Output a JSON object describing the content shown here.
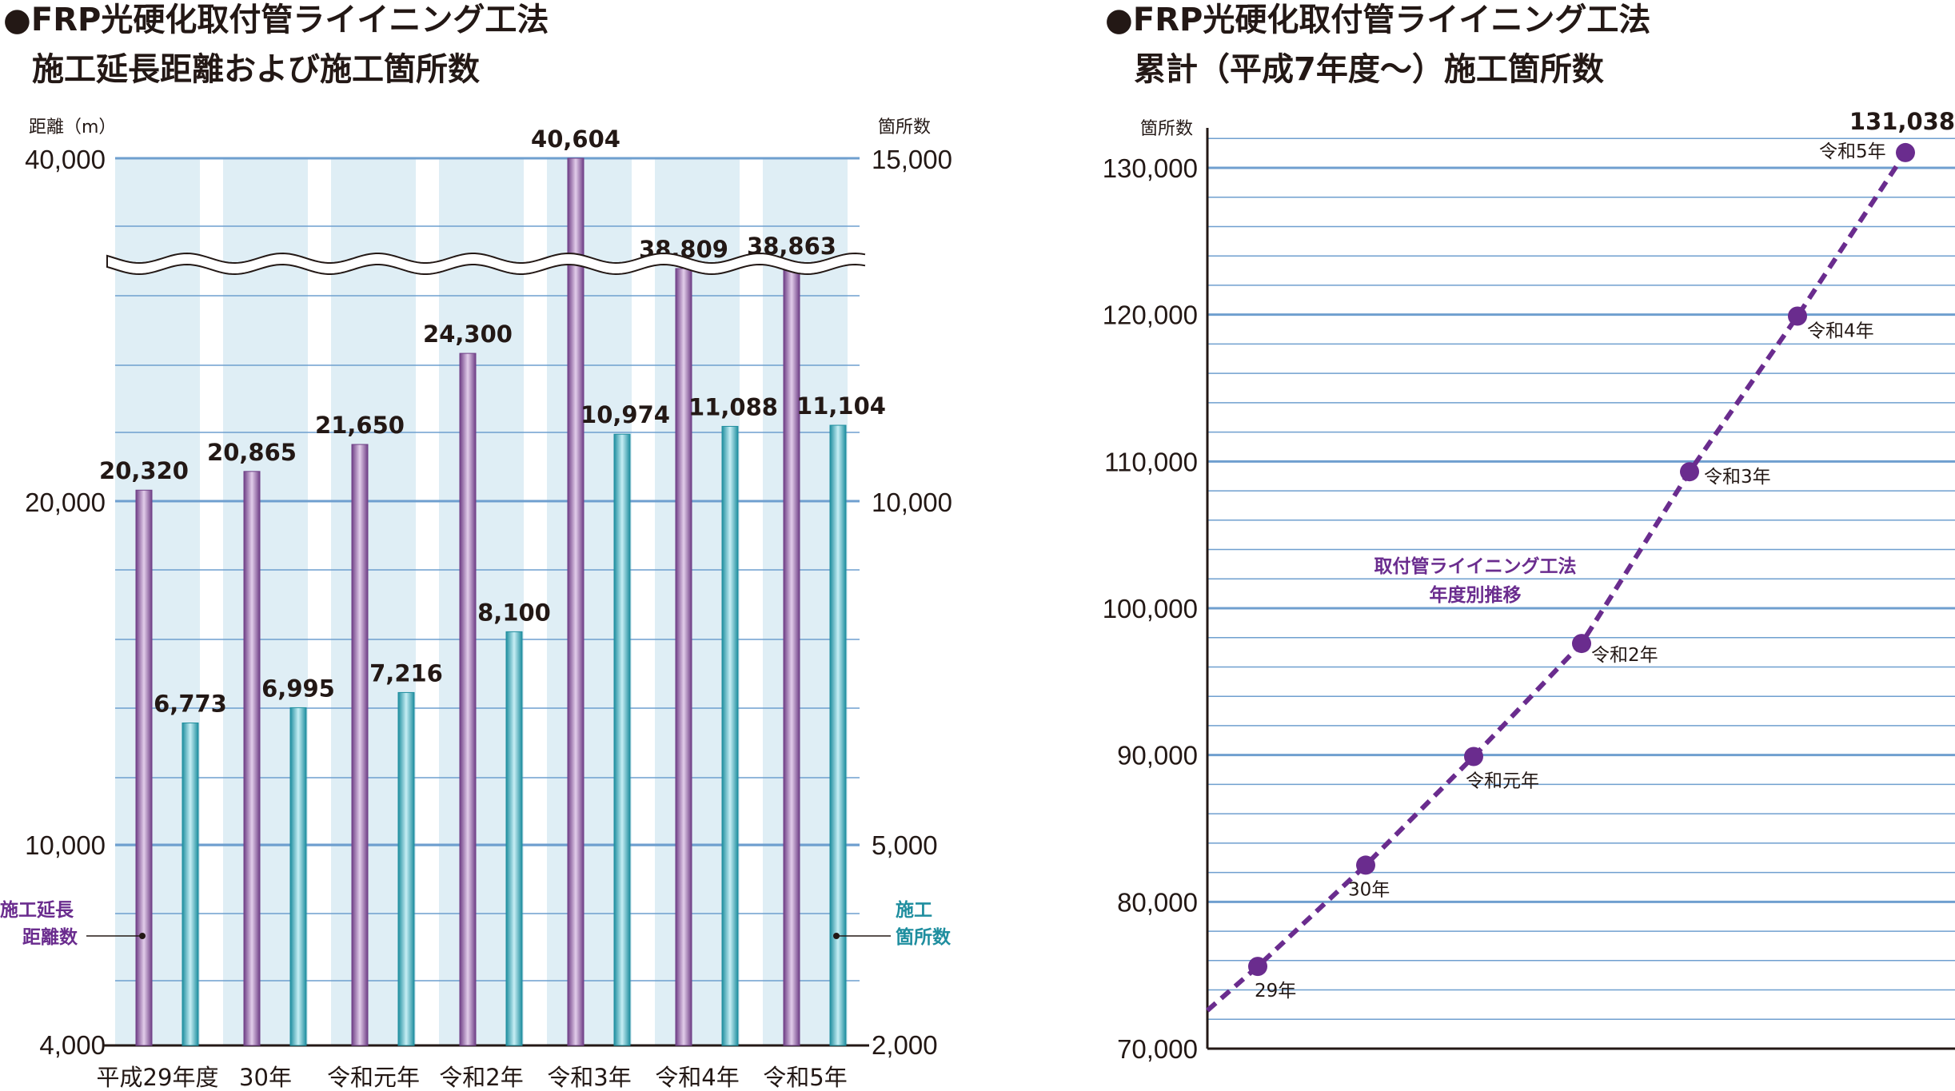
{
  "left_title_line1": "●FRP光硬化取付管ライイニング工法",
  "left_title_line2": "施工延長距離および施工箇所数",
  "right_title_line1": "●FRP光硬化取付管ライイニング工法",
  "right_title_line2": "累計（平成7年度〜）施工箇所数",
  "colors": {
    "purple": "#8a5a9f",
    "teal": "#34a6b6",
    "panel": "#dfeef5",
    "grid": "#6f9fcf",
    "line": "#6a2c8e"
  },
  "chart_data": [
    {
      "type": "bar",
      "title": "FRP光硬化取付管ライイニング工法 施工延長距離および施工箇所数",
      "categories": [
        "平成29年度",
        "30年",
        "令和元年",
        "令和2年",
        "令和3年",
        "令和4年",
        "令和5年"
      ],
      "y_left": {
        "unit": "距離（m）",
        "ticks": [
          "4,000",
          "10,000",
          "20,000",
          "40,000"
        ],
        "broken": true
      },
      "y_right": {
        "unit": "箇所数",
        "ticks": [
          "2,000",
          "5,000",
          "10,000",
          "15,000"
        ]
      },
      "series": [
        {
          "name": "施工延長距離数",
          "axis": "left",
          "values": [
            20320,
            20865,
            21650,
            24300,
            40604,
            38809,
            38863
          ],
          "labels": [
            "20,320",
            "20,865",
            "21,650",
            "24,300",
            "40,604",
            "38,809",
            "38,863"
          ]
        },
        {
          "name": "施工箇所数",
          "axis": "right",
          "values": [
            6773,
            6995,
            7216,
            8100,
            10974,
            11088,
            11104
          ],
          "labels": [
            "6,773",
            "6,995",
            "7,216",
            "8,100",
            "10,974",
            "11,088",
            "11,104"
          ]
        }
      ],
      "legend_left": [
        "施工延長",
        "距離数"
      ],
      "legend_right": [
        "施工",
        "箇所数"
      ]
    },
    {
      "type": "line",
      "title": "FRP光硬化取付管ライイニング工法 累計（平成7年度〜）施工箇所数",
      "ylabel": "箇所数",
      "ylim": [
        70000,
        131038
      ],
      "yticks": [
        "70,000",
        "80,000",
        "90,000",
        "100,000",
        "110,000",
        "120,000",
        "130,000"
      ],
      "x": [
        "29年",
        "30年",
        "令和元年",
        "令和2年",
        "令和3年",
        "令和4年",
        "令和5年"
      ],
      "values": [
        75600,
        82500,
        89900,
        97600,
        109300,
        119900,
        131038
      ],
      "end_label": "131,038",
      "annotation": [
        "取付管ライイニング工法",
        "年度別推移"
      ]
    }
  ]
}
